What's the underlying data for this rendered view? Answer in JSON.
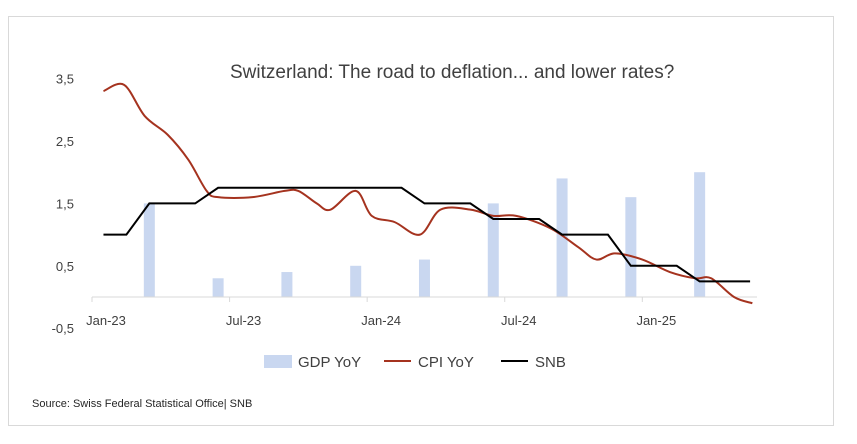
{
  "chart_data": {
    "type": "bar+line",
    "title": "Switzerland: The road to deflation... and lower rates?",
    "source": "Source: Swiss Federal Statistical Office| SNB",
    "ylim": [
      -0.5,
      4.0
    ],
    "y_ticks": [
      "-0,5",
      "0,5",
      "1,5",
      "2,5",
      "3,5"
    ],
    "y_tick_values": [
      -0.5,
      0.5,
      1.5,
      2.5,
      3.5
    ],
    "x_ticks": [
      "Jan-23",
      "Jul-23",
      "Jan-24",
      "Jul-24",
      "Jan-25"
    ],
    "x_tick_months": [
      0,
      6,
      12,
      18,
      24
    ],
    "x_range_months": [
      0,
      29
    ],
    "grid": false,
    "legend_position": "bottom",
    "series": [
      {
        "name": "GDP YoY",
        "type": "bar",
        "color": "#c9d7f0",
        "points": [
          {
            "x": 2.5,
            "y": 1.5
          },
          {
            "x": 5.5,
            "y": 0.3
          },
          {
            "x": 8.5,
            "y": 0.4
          },
          {
            "x": 11.5,
            "y": 0.5
          },
          {
            "x": 14.5,
            "y": 0.6
          },
          {
            "x": 17.5,
            "y": 1.5
          },
          {
            "x": 20.5,
            "y": 1.9
          },
          {
            "x": 23.5,
            "y": 1.6
          },
          {
            "x": 26.5,
            "y": 2.0
          }
        ]
      },
      {
        "name": "CPI YoY",
        "type": "line",
        "color": "#a5331f",
        "points": [
          {
            "x": 0.5,
            "y": 3.3
          },
          {
            "x": 1.4,
            "y": 3.4
          },
          {
            "x": 2.3,
            "y": 2.9
          },
          {
            "x": 3.3,
            "y": 2.6
          },
          {
            "x": 4.2,
            "y": 2.2
          },
          {
            "x": 5.0,
            "y": 1.7
          },
          {
            "x": 5.5,
            "y": 1.6
          },
          {
            "x": 7.0,
            "y": 1.6
          },
          {
            "x": 8.4,
            "y": 1.7
          },
          {
            "x": 9.0,
            "y": 1.7
          },
          {
            "x": 9.8,
            "y": 1.5
          },
          {
            "x": 10.4,
            "y": 1.4
          },
          {
            "x": 11.5,
            "y": 1.7
          },
          {
            "x": 12.2,
            "y": 1.3
          },
          {
            "x": 13.2,
            "y": 1.2
          },
          {
            "x": 14.3,
            "y": 1.0
          },
          {
            "x": 15.2,
            "y": 1.4
          },
          {
            "x": 16.5,
            "y": 1.4
          },
          {
            "x": 17.5,
            "y": 1.3
          },
          {
            "x": 18.5,
            "y": 1.3
          },
          {
            "x": 20.0,
            "y": 1.1
          },
          {
            "x": 21.2,
            "y": 0.8
          },
          {
            "x": 22.0,
            "y": 0.6
          },
          {
            "x": 22.8,
            "y": 0.7
          },
          {
            "x": 24.0,
            "y": 0.6
          },
          {
            "x": 25.2,
            "y": 0.4
          },
          {
            "x": 26.3,
            "y": 0.3
          },
          {
            "x": 27.0,
            "y": 0.3
          },
          {
            "x": 28.0,
            "y": 0.0
          },
          {
            "x": 28.8,
            "y": -0.1
          }
        ]
      },
      {
        "name": "SNB",
        "type": "step",
        "color": "#000000",
        "points": [
          {
            "x": 0.5,
            "y": 1.0
          },
          {
            "x": 1.5,
            "y": 1.0
          },
          {
            "x": 2.5,
            "y": 1.5
          },
          {
            "x": 4.5,
            "y": 1.5
          },
          {
            "x": 5.5,
            "y": 1.75
          },
          {
            "x": 13.5,
            "y": 1.75
          },
          {
            "x": 14.5,
            "y": 1.5
          },
          {
            "x": 16.5,
            "y": 1.5
          },
          {
            "x": 17.5,
            "y": 1.25
          },
          {
            "x": 19.5,
            "y": 1.25
          },
          {
            "x": 20.5,
            "y": 1.0
          },
          {
            "x": 22.5,
            "y": 1.0
          },
          {
            "x": 23.5,
            "y": 0.5
          },
          {
            "x": 25.5,
            "y": 0.5
          },
          {
            "x": 26.5,
            "y": 0.25
          },
          {
            "x": 28.7,
            "y": 0.25
          }
        ]
      }
    ]
  }
}
